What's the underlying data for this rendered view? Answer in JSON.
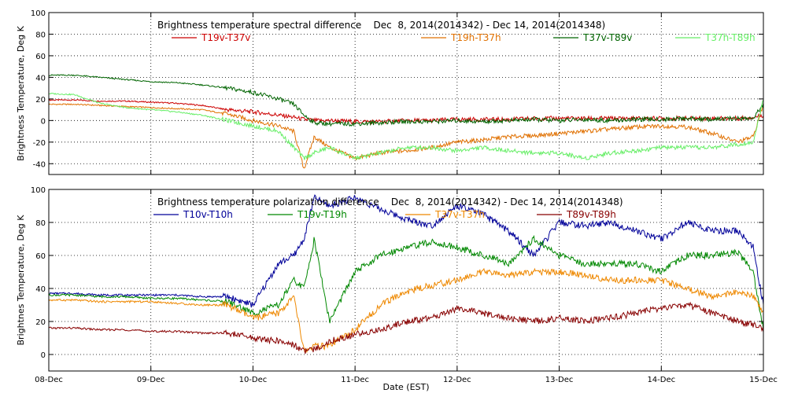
{
  "chart_data": [
    {
      "type": "line",
      "title": "Brightness temperature spectral difference    Dec  8, 2014(2014342) - Dec 14, 2014(2014348)",
      "ylabel": "Brightness Temperature, Deg K",
      "xlabel": "",
      "xlim": [
        0,
        7
      ],
      "ylim": [
        -50,
        100
      ],
      "yticks": [
        "-40",
        "-20",
        "0",
        "20",
        "40",
        "60",
        "80",
        "100"
      ],
      "ytick_values": [
        -40,
        -20,
        0,
        20,
        40,
        60,
        80,
        100
      ],
      "grid": true,
      "legend_position": "top",
      "x": [
        0,
        0.25,
        0.5,
        0.75,
        1.0,
        1.25,
        1.5,
        1.75,
        2.0,
        2.25,
        2.4,
        2.5,
        2.6,
        2.75,
        3.0,
        3.25,
        3.5,
        3.75,
        4.0,
        4.25,
        4.5,
        4.75,
        5.0,
        5.25,
        5.5,
        5.75,
        6.0,
        6.25,
        6.5,
        6.75,
        6.9,
        7.0
      ],
      "series": [
        {
          "name": "T19v-T37v",
          "color": "#cc0000",
          "values": [
            19,
            19,
            18,
            18,
            17,
            16,
            14,
            10,
            8,
            5,
            3,
            1,
            0,
            0,
            -1,
            -1,
            0,
            0,
            1,
            1,
            1,
            2,
            2,
            2,
            2,
            2,
            2,
            2,
            2,
            2,
            3,
            5
          ]
        },
        {
          "name": "T19h-T37h",
          "color": "#e07000",
          "values": [
            15,
            15,
            14,
            13,
            12,
            11,
            10,
            6,
            0,
            -5,
            -10,
            -45,
            -15,
            -25,
            -35,
            -30,
            -28,
            -25,
            -20,
            -18,
            -15,
            -14,
            -12,
            -10,
            -8,
            -6,
            -5,
            -6,
            -12,
            -20,
            -15,
            15
          ]
        },
        {
          "name": "T37v-T89v",
          "color": "#006400",
          "values": [
            42,
            42,
            40,
            38,
            36,
            35,
            33,
            30,
            26,
            20,
            15,
            5,
            -2,
            -3,
            -3,
            -2,
            -1,
            -1,
            0,
            -1,
            0,
            1,
            0,
            1,
            0,
            1,
            1,
            2,
            1,
            2,
            2,
            15
          ]
        },
        {
          "name": "T37h-T89h",
          "color": "#66ee66",
          "values": [
            25,
            24,
            16,
            12,
            10,
            8,
            5,
            0,
            -5,
            -10,
            -25,
            -35,
            -30,
            -25,
            -35,
            -30,
            -25,
            -25,
            -28,
            -25,
            -28,
            -30,
            -30,
            -35,
            -30,
            -28,
            -25,
            -25,
            -25,
            -22,
            -20,
            20
          ]
        }
      ]
    },
    {
      "type": "line",
      "title": "Brightness temperature polarization difference    Dec  8, 2014(2014342) - Dec 14, 2014(2014348)",
      "ylabel": "Brightnes Temperature, Deg K",
      "xlabel": "Date (EST)",
      "xlim": [
        0,
        7
      ],
      "ylim": [
        -10,
        100
      ],
      "xticks": [
        "08-Dec",
        "09-Dec",
        "10-Dec",
        "11-Dec",
        "12-Dec",
        "13-Dec",
        "14-Dec",
        "15-Dec"
      ],
      "xtick_values": [
        0,
        1,
        2,
        3,
        4,
        5,
        6,
        7
      ],
      "yticks": [
        "0",
        "20",
        "40",
        "60",
        "80",
        "100"
      ],
      "ytick_values": [
        0,
        20,
        40,
        60,
        80,
        100
      ],
      "grid": true,
      "legend_position": "top",
      "x": [
        0,
        0.25,
        0.5,
        0.75,
        1.0,
        1.25,
        1.5,
        1.75,
        2.0,
        2.25,
        2.4,
        2.5,
        2.6,
        2.75,
        3.0,
        3.25,
        3.5,
        3.75,
        4.0,
        4.25,
        4.5,
        4.75,
        5.0,
        5.25,
        5.5,
        5.75,
        6.0,
        6.25,
        6.5,
        6.75,
        6.9,
        7.0
      ],
      "series": [
        {
          "name": "T10v-T10h",
          "color": "#000099",
          "values": [
            37,
            37,
            36,
            36,
            36,
            36,
            35,
            35,
            30,
            55,
            60,
            70,
            95,
            90,
            95,
            88,
            82,
            78,
            90,
            85,
            75,
            60,
            80,
            78,
            80,
            75,
            70,
            80,
            75,
            75,
            65,
            30
          ]
        },
        {
          "name": "T19v-T19h",
          "color": "#008800",
          "values": [
            36,
            36,
            35,
            35,
            34,
            34,
            33,
            32,
            25,
            30,
            45,
            40,
            70,
            20,
            50,
            60,
            65,
            68,
            65,
            60,
            55,
            70,
            60,
            55,
            55,
            55,
            50,
            60,
            60,
            62,
            50,
            15
          ]
        },
        {
          "name": "T37v-T37h",
          "color": "#ee8800",
          "values": [
            33,
            33,
            32,
            32,
            32,
            31,
            30,
            30,
            22,
            25,
            35,
            2,
            5,
            5,
            15,
            30,
            38,
            42,
            45,
            50,
            48,
            50,
            50,
            48,
            45,
            45,
            45,
            40,
            35,
            38,
            35,
            25
          ]
        },
        {
          "name": "T89v-T89h",
          "color": "#880000",
          "values": [
            16,
            16,
            15,
            15,
            14,
            14,
            13,
            13,
            10,
            8,
            6,
            2,
            3,
            8,
            12,
            15,
            20,
            22,
            28,
            25,
            22,
            20,
            22,
            20,
            22,
            25,
            28,
            30,
            25,
            20,
            18,
            15
          ]
        }
      ]
    }
  ]
}
